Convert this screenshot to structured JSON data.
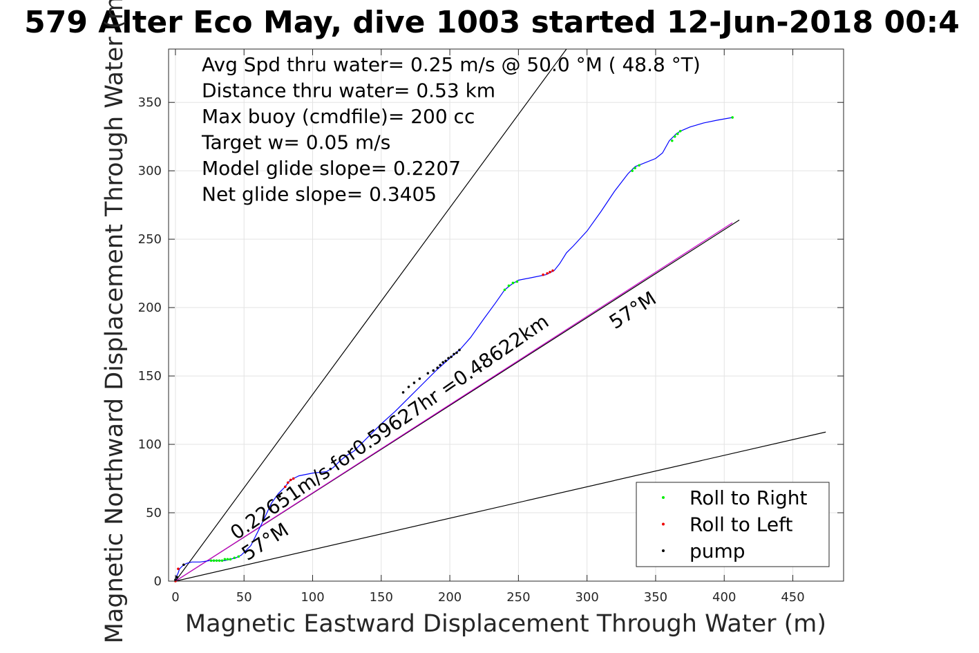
{
  "chart_data": {
    "type": "line",
    "title": "579 Alter Eco May, dive 1003 started 12-Jun-2018 00:4",
    "xlabel": "Magnetic Eastward Displacement Through Water (m)",
    "ylabel": "Magnetic Northward Displacement Through Water (m)",
    "xlim": [
      -5,
      487
    ],
    "ylim": [
      0,
      389
    ],
    "xticks": [
      0,
      50,
      100,
      150,
      200,
      250,
      300,
      350,
      400,
      450
    ],
    "yticks": [
      0,
      50,
      100,
      150,
      200,
      250,
      300,
      350
    ],
    "grid": true,
    "legend_position": "bottom-right",
    "notes": [
      "Avg Spd thru water=  0.25 m/s @  50.0 °M ( 48.8 °T)",
      "Distance thru water=  0.53 km",
      "Max buoy (cmdfile)= 200 cc",
      "Target w= 0.05 m/s",
      "Model glide slope= 0.2207",
      "Net glide slope= 0.3405"
    ],
    "annotations": [
      "0.22651m/s for0.59627hr =0.48622km",
      "57°M",
      "57°M"
    ],
    "track": {
      "color": "#0000ff",
      "x": [
        0,
        0.5,
        1,
        2,
        3,
        5,
        8,
        12,
        18,
        25,
        30,
        36,
        40,
        44,
        48,
        55,
        62,
        70,
        75,
        80,
        83,
        86,
        90,
        100,
        110,
        115,
        120,
        125,
        130,
        140,
        150,
        160,
        170,
        180,
        190,
        200,
        208,
        215,
        225,
        233,
        240,
        245,
        250,
        260,
        270,
        276,
        280,
        285,
        290,
        300,
        310,
        320,
        330,
        335,
        340,
        350,
        355,
        360,
        365,
        368,
        375,
        385,
        395,
        406
      ],
      "y": [
        0,
        2,
        4,
        6,
        9,
        11,
        13,
        14,
        14,
        15,
        15,
        15,
        16,
        17,
        19,
        26,
        40,
        57,
        64,
        69,
        73,
        75,
        77,
        79,
        80,
        83,
        88,
        92,
        95,
        105,
        115,
        124,
        134,
        144,
        154,
        163,
        170,
        178,
        192,
        203,
        213,
        217,
        220,
        222,
        224,
        227,
        232,
        240,
        245,
        256,
        270,
        285,
        298,
        303,
        305,
        309,
        313,
        322,
        327,
        329,
        332,
        335,
        337,
        339
      ]
    },
    "reference_lines": [
      {
        "color": "#000000",
        "x": [
          0,
          285
        ],
        "y": [
          0,
          389
        ]
      },
      {
        "color": "#000000",
        "x": [
          0,
          474
        ],
        "y": [
          0,
          109
        ]
      },
      {
        "color": "#000000",
        "x": [
          0,
          411
        ],
        "y": [
          0,
          264
        ]
      },
      {
        "color": "#cc00cc",
        "x": [
          0,
          406
        ],
        "y": [
          0,
          262
        ]
      }
    ],
    "series": [
      {
        "name": "Roll to Right",
        "color": "#00ee00",
        "x": [
          26,
          28,
          30,
          32,
          34,
          36,
          38,
          40,
          43,
          46,
          240,
          243,
          246,
          249,
          333,
          335,
          338,
          362,
          364,
          366,
          368,
          406
        ],
        "y": [
          15,
          15,
          15,
          15,
          15,
          16,
          16,
          16,
          17,
          18,
          213,
          216,
          218,
          219,
          300,
          302,
          304,
          322,
          325,
          327,
          329,
          339
        ]
      },
      {
        "name": "Roll to Left",
        "color": "#ee0000",
        "x": [
          0,
          2,
          80,
          82,
          84,
          86,
          268,
          271,
          273,
          275
        ],
        "y": [
          0,
          9,
          69,
          72,
          74,
          75,
          224,
          225,
          226,
          227
        ]
      },
      {
        "name": "pump",
        "color": "#000000",
        "x": [
          0,
          1,
          6,
          76,
          113,
          166,
          170,
          174,
          178,
          184,
          188,
          191,
          193,
          195,
          197,
          199,
          201,
          203,
          205,
          207
        ],
        "y": [
          1,
          3,
          12,
          62,
          82,
          138,
          142,
          145,
          148,
          152,
          154,
          156,
          158,
          160,
          161,
          163,
          164,
          166,
          167,
          169
        ]
      }
    ]
  }
}
